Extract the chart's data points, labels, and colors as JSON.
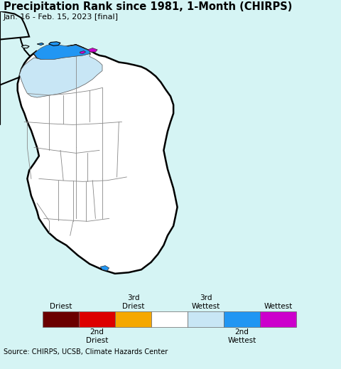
{
  "title": "Precipitation Rank since 1981, 1-Month (CHIRPS)",
  "subtitle": "Jan. 16 - Feb. 15, 2023 [final]",
  "source_text": "Source: CHIRPS, UCSB, Climate Hazards Center",
  "bg_color": "#d5f4f4",
  "legend_colors": [
    "#6b0000",
    "#dd0000",
    "#f5a800",
    "#ffffff",
    "#c8e6f5",
    "#2196f3",
    "#cc00cc"
  ],
  "source_bg": "#e0e0e0",
  "title_fontsize": 10.5,
  "subtitle_fontsize": 8,
  "source_fontsize": 7,
  "legend_fontsize": 7.5,
  "lon_min": 79.5,
  "lon_max": 83.0,
  "lat_min": 5.5,
  "lat_max": 10.5
}
